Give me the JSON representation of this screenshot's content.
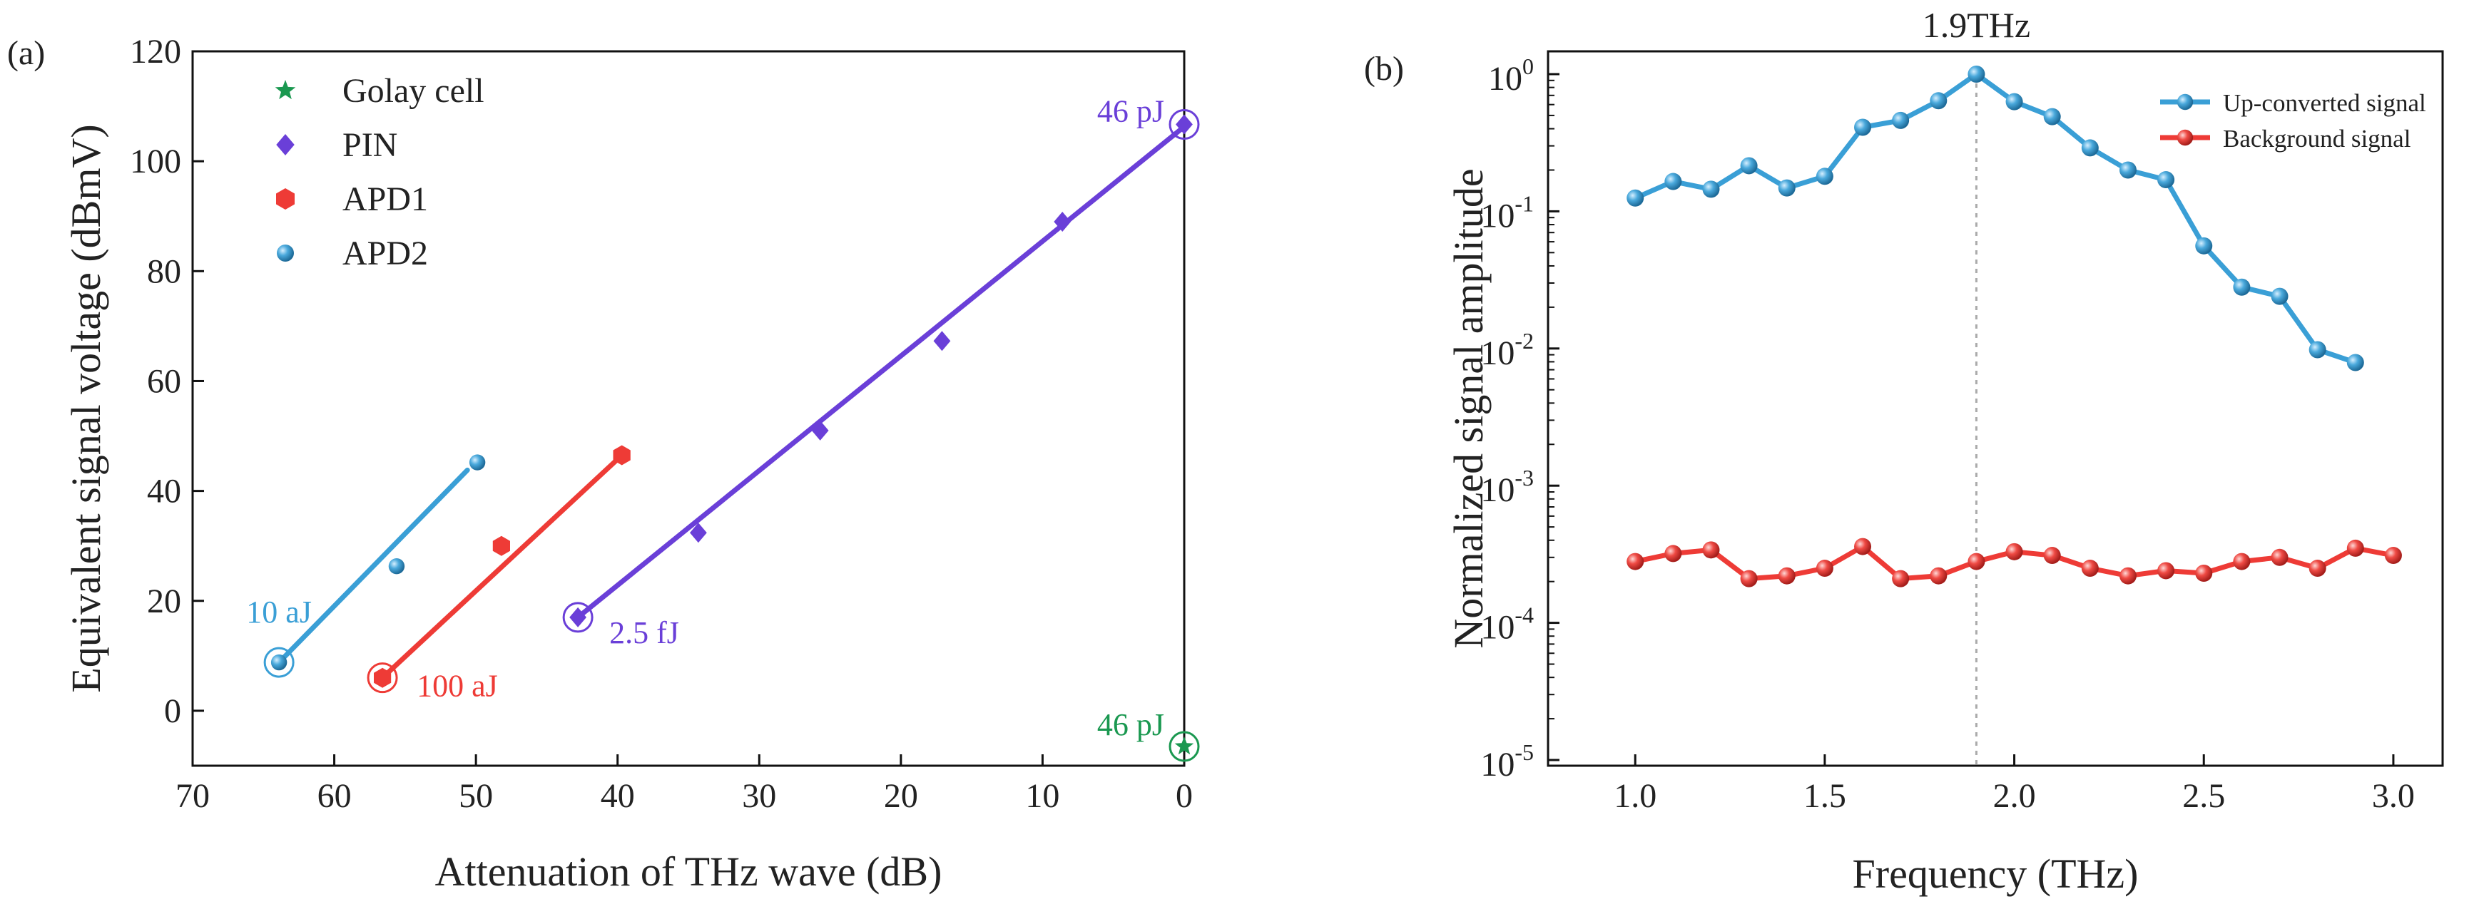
{
  "chart_data": [
    {
      "type": "scatter",
      "panel_label": "(a)",
      "xlabel": "Attenuation of THz wave (dB)",
      "ylabel": "Equivalent signal voltage (dBmV)",
      "xlim": [
        70,
        0
      ],
      "ylim": [
        -10,
        120
      ],
      "x_reversed": true,
      "xticks": [
        70,
        60,
        50,
        40,
        30,
        20,
        10,
        0
      ],
      "yticks": [
        0,
        20,
        40,
        60,
        80,
        100,
        120
      ],
      "legend_position": "top-left",
      "series": [
        {
          "name": "Golay cell",
          "marker": "star",
          "color": "#1a9850",
          "x": [
            0
          ],
          "y": [
            -6.5
          ],
          "fit": null
        },
        {
          "name": "PIN",
          "marker": "diamond",
          "color": "#6a3fd8",
          "x": [
            42.8,
            34.3,
            25.7,
            17.1,
            8.6,
            0
          ],
          "y": [
            17,
            32.4,
            51,
            67.3,
            89,
            106.7
          ],
          "fit": [
            [
              42.8,
              17
            ],
            [
              0,
              106.3
            ]
          ]
        },
        {
          "name": "APD1",
          "marker": "hexagon",
          "color": "#ee3b36",
          "x": [
            56.6,
            48.2,
            39.7
          ],
          "y": [
            6,
            30,
            46.5
          ],
          "fit": [
            [
              56.6,
              6
            ],
            [
              39.7,
              46.5
            ]
          ]
        },
        {
          "name": "APD2",
          "marker": "sphere",
          "color": "#3a9fd6",
          "x": [
            63.9,
            55.6,
            49.9
          ],
          "y": [
            8.8,
            26.3,
            45.2
          ],
          "fit": [
            [
              63.9,
              8.8
            ],
            [
              50.6,
              43.8
            ]
          ]
        }
      ],
      "annotations": [
        {
          "text": "46 pJ",
          "color": "#6a3fd8",
          "at": [
            0,
            106.7
          ]
        },
        {
          "text": "2.5 fJ",
          "color": "#6a3fd8",
          "at": [
            42.8,
            17
          ]
        },
        {
          "text": "100 aJ",
          "color": "#ee3b36",
          "at": [
            56.6,
            6
          ]
        },
        {
          "text": "10 aJ",
          "color": "#3a9fd6",
          "at": [
            63.9,
            8.8
          ]
        },
        {
          "text": "46 pJ",
          "color": "#1a9850",
          "at": [
            0,
            -6.5
          ]
        }
      ]
    },
    {
      "type": "line",
      "panel_label": "(b)",
      "xlabel": "Frequency (THz)",
      "ylabel": "Normalized signal amplitude",
      "yscale": "log",
      "xlim": [
        0.77,
        3.13
      ],
      "ylim_exponents": [
        -5,
        0
      ],
      "xticks": [
        "1.0",
        "1.5",
        "2.0",
        "2.5",
        "3.0"
      ],
      "yticks": [
        {
          "base": "10",
          "exp": "-5",
          "value": -5
        },
        {
          "base": "10",
          "exp": "-4",
          "value": -4
        },
        {
          "base": "10",
          "exp": "-3",
          "value": -3
        },
        {
          "base": "10",
          "exp": "-2",
          "value": -2
        },
        {
          "base": "10",
          "exp": "-1",
          "value": -1
        },
        {
          "base": "10",
          "exp": "0",
          "value": 0
        }
      ],
      "reference_line": {
        "x": 1.9,
        "label": "1.9THz"
      },
      "legend_position": "top-right",
      "series": [
        {
          "name": "Up-converted signal",
          "color": "#3a9fd6",
          "x": [
            1.0,
            1.1,
            1.2,
            1.3,
            1.4,
            1.5,
            1.6,
            1.7,
            1.8,
            1.9,
            2.0,
            2.1,
            2.2,
            2.3,
            2.4,
            2.5,
            2.6,
            2.7,
            2.8,
            2.9
          ],
          "y": [
            0.125,
            0.165,
            0.145,
            0.215,
            0.148,
            0.18,
            0.41,
            0.46,
            0.64,
            1.0,
            0.63,
            0.49,
            0.29,
            0.2,
            0.17,
            0.056,
            0.028,
            0.024,
            0.0098,
            0.0079
          ]
        },
        {
          "name": "Background signal",
          "color": "#ee3b36",
          "x": [
            1.0,
            1.1,
            1.2,
            1.3,
            1.4,
            1.5,
            1.6,
            1.7,
            1.8,
            1.9,
            2.0,
            2.1,
            2.2,
            2.3,
            2.4,
            2.5,
            2.6,
            2.7,
            2.8,
            2.9,
            3.0
          ],
          "y": [
            0.00028,
            0.00032,
            0.00034,
            0.00021,
            0.00022,
            0.00025,
            0.00036,
            0.00021,
            0.00022,
            0.00028,
            0.00033,
            0.00031,
            0.00025,
            0.00022,
            0.00024,
            0.00023,
            0.00028,
            0.0003,
            0.00025,
            0.00035,
            0.00031
          ]
        }
      ]
    }
  ]
}
